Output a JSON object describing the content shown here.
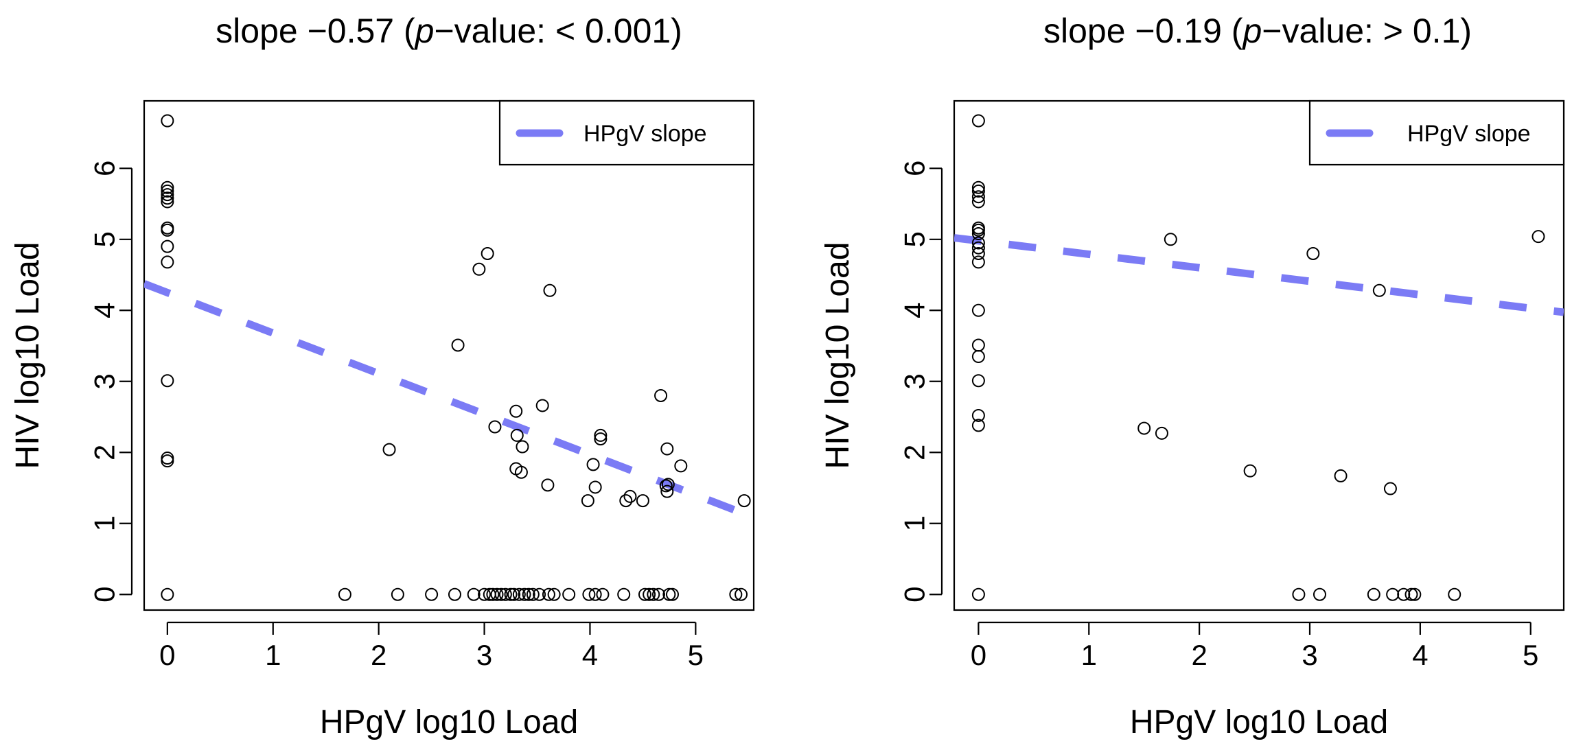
{
  "chart_data": [
    {
      "type": "scatter",
      "title": "slope −0.57 (p−value: < 0.001)",
      "title_parts": {
        "pre": "slope −0.57 (",
        "italic": "p",
        "post": "−value: < 0.001)"
      },
      "xlabel": "HPgV log10 Load",
      "ylabel": "HIV log10 Load",
      "xlim": [
        -0.22,
        5.55
      ],
      "ylim": [
        -0.22,
        6.95
      ],
      "xticks": [
        "0",
        "1",
        "2",
        "3",
        "4",
        "5"
      ],
      "yticks": [
        "0",
        "1",
        "2",
        "3",
        "4",
        "5",
        "6"
      ],
      "legend": {
        "label": "HPgV slope",
        "position": "top-right"
      },
      "line": {
        "intercept": 4.25,
        "slope": -0.57,
        "color": "#7b7bf5"
      },
      "grid": false,
      "points": [
        [
          0,
          6.67
        ],
        [
          0,
          5.73
        ],
        [
          0,
          5.68
        ],
        [
          0,
          5.63
        ],
        [
          0,
          5.58
        ],
        [
          0,
          5.53
        ],
        [
          0,
          5.16
        ],
        [
          0,
          5.13
        ],
        [
          0,
          4.9
        ],
        [
          0,
          4.68
        ],
        [
          0,
          3.01
        ],
        [
          0,
          1.92
        ],
        [
          0,
          1.88
        ],
        [
          0,
          0
        ],
        [
          1.68,
          0
        ],
        [
          2.1,
          2.04
        ],
        [
          2.18,
          0
        ],
        [
          2.5,
          0
        ],
        [
          2.72,
          0
        ],
        [
          2.75,
          3.51
        ],
        [
          2.9,
          0
        ],
        [
          2.95,
          4.58
        ],
        [
          3.0,
          0
        ],
        [
          3.03,
          4.8
        ],
        [
          3.05,
          0
        ],
        [
          3.08,
          0
        ],
        [
          3.12,
          0
        ],
        [
          3.16,
          0
        ],
        [
          3.1,
          2.36
        ],
        [
          3.2,
          0
        ],
        [
          3.25,
          0
        ],
        [
          3.28,
          0
        ],
        [
          3.3,
          2.58
        ],
        [
          3.3,
          1.77
        ],
        [
          3.31,
          2.24
        ],
        [
          3.33,
          0
        ],
        [
          3.35,
          1.72
        ],
        [
          3.36,
          2.08
        ],
        [
          3.38,
          0
        ],
        [
          3.42,
          0
        ],
        [
          3.46,
          0
        ],
        [
          3.52,
          0
        ],
        [
          3.55,
          2.66
        ],
        [
          3.6,
          1.54
        ],
        [
          3.61,
          0
        ],
        [
          3.62,
          4.28
        ],
        [
          3.66,
          0
        ],
        [
          3.8,
          0
        ],
        [
          3.98,
          1.32
        ],
        [
          3.99,
          0
        ],
        [
          4.03,
          1.83
        ],
        [
          4.05,
          1.51
        ],
        [
          4.05,
          0
        ],
        [
          4.1,
          2.24
        ],
        [
          4.1,
          2.19
        ],
        [
          4.12,
          0
        ],
        [
          4.32,
          0
        ],
        [
          4.34,
          1.32
        ],
        [
          4.38,
          1.38
        ],
        [
          4.5,
          1.32
        ],
        [
          4.52,
          0
        ],
        [
          4.56,
          0
        ],
        [
          4.6,
          0
        ],
        [
          4.65,
          0
        ],
        [
          4.67,
          2.8
        ],
        [
          4.72,
          1.53
        ],
        [
          4.73,
          1.45
        ],
        [
          4.73,
          2.05
        ],
        [
          4.74,
          1.55
        ],
        [
          4.75,
          0
        ],
        [
          4.78,
          0
        ],
        [
          4.86,
          1.81
        ],
        [
          5.38,
          0
        ],
        [
          5.43,
          0
        ],
        [
          5.46,
          1.32
        ]
      ]
    },
    {
      "type": "scatter",
      "title": "slope −0.19 (p−value: > 0.1)",
      "title_parts": {
        "pre": "slope −0.19 (",
        "italic": "p",
        "post": "−value: > 0.1)"
      },
      "xlabel": "HPgV log10 Load",
      "ylabel": "HIV log10 Load",
      "xlim": [
        -0.22,
        5.3
      ],
      "ylim": [
        -0.22,
        6.95
      ],
      "xticks": [
        "0",
        "1",
        "2",
        "3",
        "4",
        "5"
      ],
      "yticks": [
        "0",
        "1",
        "2",
        "3",
        "4",
        "5",
        "6"
      ],
      "legend": {
        "label": "HPgV slope",
        "position": "top-right"
      },
      "line": {
        "intercept": 4.98,
        "slope": -0.19,
        "color": "#7b7bf5"
      },
      "grid": false,
      "points": [
        [
          0,
          6.67
        ],
        [
          0,
          5.73
        ],
        [
          0,
          5.68
        ],
        [
          0,
          5.6
        ],
        [
          0,
          5.53
        ],
        [
          0,
          5.16
        ],
        [
          0,
          5.13
        ],
        [
          0,
          5.08
        ],
        [
          0,
          4.95
        ],
        [
          0,
          4.88
        ],
        [
          0,
          4.8
        ],
        [
          0,
          4.68
        ],
        [
          0,
          4.0
        ],
        [
          0,
          3.51
        ],
        [
          0,
          3.35
        ],
        [
          0,
          3.01
        ],
        [
          0,
          2.52
        ],
        [
          0,
          2.38
        ],
        [
          0,
          0
        ],
        [
          1.5,
          2.34
        ],
        [
          1.66,
          2.27
        ],
        [
          1.74,
          5.0
        ],
        [
          2.46,
          1.74
        ],
        [
          2.9,
          0
        ],
        [
          3.03,
          4.8
        ],
        [
          3.09,
          0
        ],
        [
          3.28,
          1.67
        ],
        [
          3.58,
          0
        ],
        [
          3.63,
          4.28
        ],
        [
          3.73,
          1.49
        ],
        [
          3.75,
          0
        ],
        [
          3.85,
          0
        ],
        [
          3.92,
          0
        ],
        [
          3.95,
          0
        ],
        [
          4.31,
          0
        ],
        [
          5.07,
          5.04
        ]
      ]
    }
  ]
}
